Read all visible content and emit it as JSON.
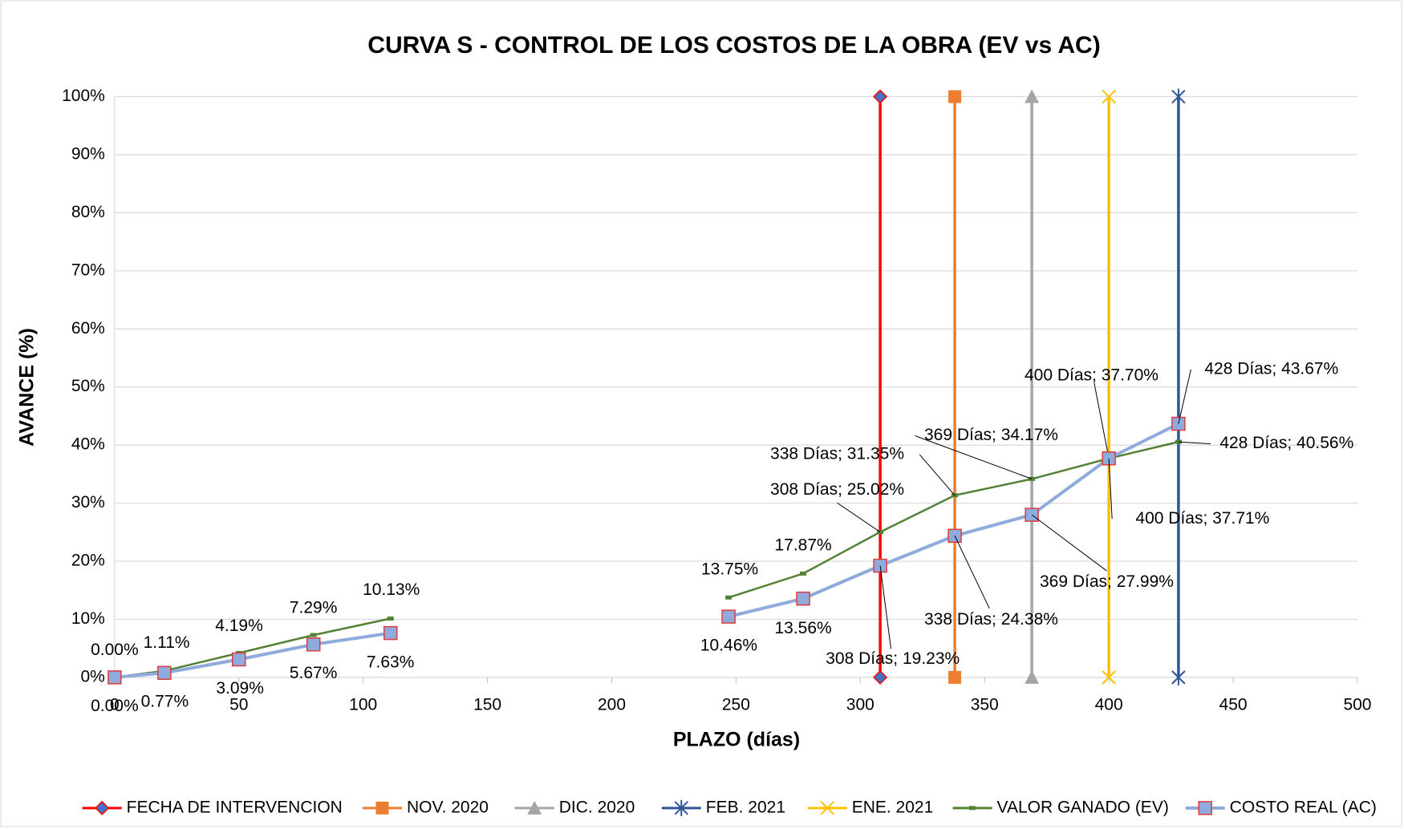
{
  "chart_data": {
    "type": "line",
    "title": "CURVA S - CONTROL DE LOS COSTOS DE LA OBRA  (EV vs AC)",
    "xlabel": "PLAZO (días)",
    "ylabel": "AVANCE (%)",
    "xlim": [
      0,
      500
    ],
    "xticks": [
      0,
      50,
      100,
      150,
      200,
      250,
      300,
      350,
      400,
      450,
      500
    ],
    "ylim": [
      0,
      100
    ],
    "yticks": [
      {
        "value": 0,
        "label": "0%"
      },
      {
        "value": 10,
        "label": "10%"
      },
      {
        "value": 20,
        "label": "20%"
      },
      {
        "value": 30,
        "label": "30%"
      },
      {
        "value": 40,
        "label": "40%"
      },
      {
        "value": 50,
        "label": "50%"
      },
      {
        "value": 60,
        "label": "60%"
      },
      {
        "value": 70,
        "label": "70%"
      },
      {
        "value": 80,
        "label": "80%"
      },
      {
        "value": 90,
        "label": "90%"
      },
      {
        "value": 100,
        "label": "100%"
      }
    ],
    "grid": true,
    "legend": "bottom",
    "series": [
      {
        "name": "FECHA DE INTERVENCION",
        "color": "#ff0000",
        "marker": "diamond",
        "x": [
          308,
          308
        ],
        "values": [
          0,
          100
        ]
      },
      {
        "name": "NOV. 2020",
        "color": "#ed7d31",
        "marker": "square",
        "x": [
          338,
          338
        ],
        "values": [
          0,
          100
        ]
      },
      {
        "name": "DIC. 2020",
        "color": "#a5a5a5",
        "marker": "triangle",
        "x": [
          369,
          369
        ],
        "values": [
          0,
          100
        ]
      },
      {
        "name": "FEB. 2021",
        "color": "#2f5597",
        "marker": "star",
        "x": [
          428,
          428
        ],
        "values": [
          0,
          100
        ]
      },
      {
        "name": "ENE. 2021",
        "color": "#ffc000",
        "marker": "x",
        "x": [
          400,
          400
        ],
        "values": [
          0,
          100
        ]
      },
      {
        "name": "VALOR GANADO (EV)",
        "color": "#548235",
        "marker": "dash",
        "x": [
          0,
          20,
          50,
          80,
          111,
          null,
          247,
          277,
          308,
          338,
          369,
          400,
          428
        ],
        "values": [
          0,
          1.11,
          4.19,
          7.29,
          10.13,
          null,
          13.75,
          17.87,
          25.02,
          31.35,
          34.17,
          37.7,
          40.56
        ],
        "value_labels": [
          "0.00%",
          "1.11%",
          "4.19%",
          "7.29%",
          "10.13%",
          null,
          "13.75%",
          "17.87%",
          "308 Días; 25.02%",
          "338 Días; 31.35%",
          "369 Días; 34.17%",
          "400 Días; 37.70%",
          "428 Días; 40.56%"
        ]
      },
      {
        "name": "COSTO REAL (AC)",
        "color": "#8faadc",
        "marker": "box",
        "x": [
          0,
          20,
          50,
          80,
          111,
          null,
          247,
          277,
          308,
          338,
          369,
          400,
          428
        ],
        "values": [
          0,
          0.77,
          3.09,
          5.67,
          7.63,
          null,
          10.46,
          13.56,
          19.23,
          24.38,
          27.99,
          37.71,
          43.67
        ],
        "value_labels": [
          "0.00%",
          "0.77%",
          "3.09%",
          "5.67%",
          "7.63%",
          null,
          "10.46%",
          "13.56%",
          "308 Días; 19.23%",
          "338 Días; 24.38%",
          "369 Días; 27.99%",
          "400 Días; 37.71%",
          "428 Días; 43.67%"
        ]
      }
    ]
  }
}
